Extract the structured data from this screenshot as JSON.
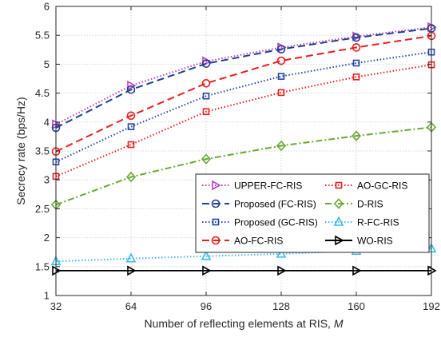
{
  "chart_data": {
    "type": "line",
    "xlabel": "Number of reflecting elements at RIS, ",
    "xlabel_var": "M",
    "ylabel": "Secrecy rate (bps/Hz)",
    "x": [
      32,
      64,
      96,
      128,
      160,
      192
    ],
    "xlim": [
      32,
      192
    ],
    "ylim": [
      1,
      6
    ],
    "xticks": [
      "32",
      "64",
      "96",
      "128",
      "160",
      "192"
    ],
    "yticks": [
      "1",
      "1.5",
      "2",
      "2.5",
      "3",
      "3.5",
      "4",
      "4.5",
      "5",
      "5.5",
      "6"
    ],
    "grid": true,
    "legend_position": "center-right",
    "series": [
      {
        "name": "UPPER-FC-RIS",
        "values": [
          3.96,
          4.63,
          5.05,
          5.29,
          5.48,
          5.64
        ],
        "color": "#bf3fbf",
        "dash": "1.5,2.5",
        "marker": "triangle-right"
      },
      {
        "name": "Proposed (FC-RIS)",
        "values": [
          3.9,
          4.56,
          5.01,
          5.26,
          5.46,
          5.62
        ],
        "color": "#1f3f8f",
        "dash": "9,5",
        "marker": "circle"
      },
      {
        "name": "Proposed (GC-RIS)",
        "values": [
          3.31,
          3.92,
          4.45,
          4.79,
          5.02,
          5.21
        ],
        "color": "#2347a6",
        "dash": "1.5,2.5",
        "marker": "square"
      },
      {
        "name": "AO-FC-RIS",
        "values": [
          3.49,
          4.11,
          4.67,
          5.06,
          5.29,
          5.49
        ],
        "color": "#e61e1e",
        "dash": "9,5",
        "marker": "circle"
      },
      {
        "name": "AO-GC-RIS",
        "values": [
          3.06,
          3.61,
          4.18,
          4.51,
          4.78,
          4.99
        ],
        "color": "#e61e1e",
        "dash": "1.5,2.5",
        "marker": "square"
      },
      {
        "name": "D-RIS",
        "values": [
          2.57,
          3.05,
          3.36,
          3.59,
          3.76,
          3.91
        ],
        "color": "#6aa832",
        "dash": "8,3,2,3",
        "marker": "diamond"
      },
      {
        "name": "R-FC-RIS",
        "values": [
          1.59,
          1.64,
          1.68,
          1.72,
          1.77,
          1.81
        ],
        "color": "#3cb8e6",
        "dash": "1.5,2.5",
        "marker": "triangle-up"
      },
      {
        "name": "WO-RIS",
        "values": [
          1.43,
          1.43,
          1.43,
          1.43,
          1.43,
          1.43
        ],
        "color": "#000000",
        "dash": "",
        "marker": "triangle-right"
      }
    ],
    "legend_layout": [
      [
        "UPPER-FC-RIS",
        "AO-GC-RIS"
      ],
      [
        "Proposed (FC-RIS)",
        "D-RIS"
      ],
      [
        "Proposed (GC-RIS)",
        "R-FC-RIS"
      ],
      [
        "AO-FC-RIS",
        "WO-RIS"
      ]
    ]
  }
}
